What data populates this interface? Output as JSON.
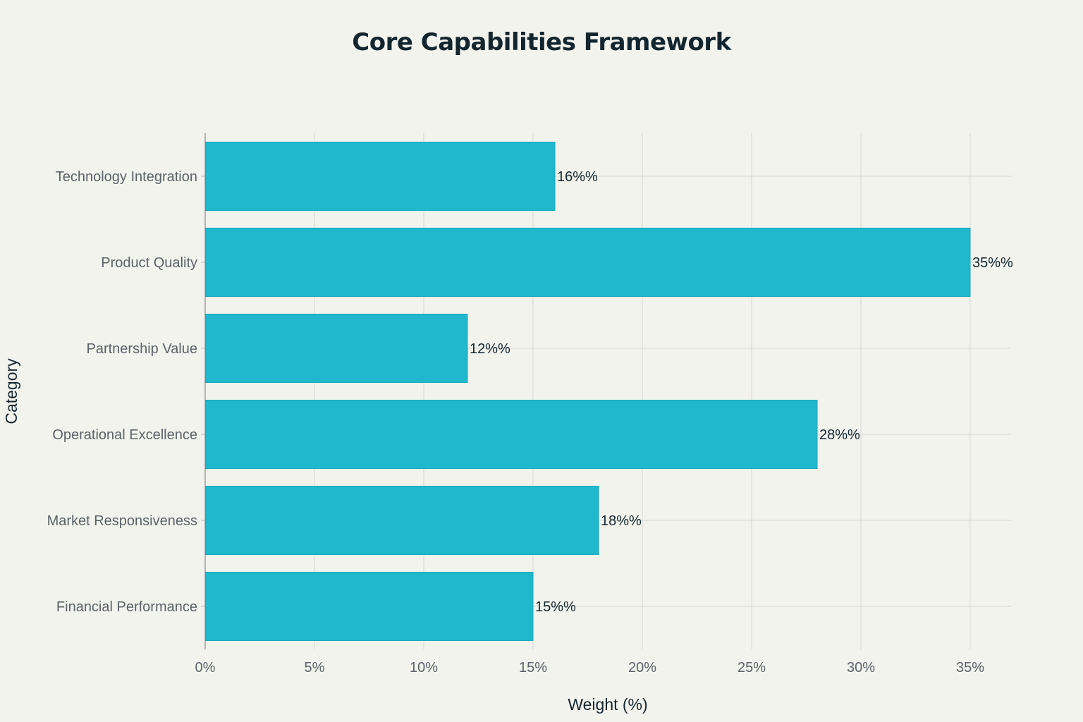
{
  "chart_data": {
    "type": "bar",
    "orientation": "horizontal",
    "title": "Core Capabilities Framework",
    "xlabel": "Weight (%)",
    "ylabel": "Category",
    "categories": [
      "Technology Integration",
      "Product Quality",
      "Partnership Value",
      "Operational Excellence",
      "Market Responsiveness",
      "Financial Performance"
    ],
    "values": [
      16,
      35,
      12,
      28,
      18,
      15
    ],
    "data_labels": [
      "16%%",
      "35%%",
      "12%%",
      "28%%",
      "18%%",
      "15%%"
    ],
    "xlim": [
      0,
      37
    ],
    "x_ticks": [
      0,
      5,
      10,
      15,
      20,
      25,
      30,
      35
    ],
    "x_tick_labels": [
      "0%",
      "5%",
      "10%",
      "15%",
      "20%",
      "25%",
      "30%",
      "35%"
    ],
    "grid": true,
    "bar_color": "#1fb8cd"
  }
}
